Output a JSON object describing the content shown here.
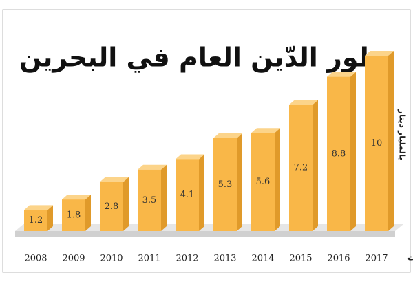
{
  "chart_data": {
    "type": "bar3d",
    "title": "تطور الدّين العام في البحرين",
    "y_axis_label": "بالمليار دينار",
    "annotation": "توقعات",
    "categories": [
      "2008",
      "2009",
      "2010",
      "2011",
      "2012",
      "2013",
      "2014",
      "2015",
      "2016",
      "2017"
    ],
    "values": [
      1.2,
      1.8,
      2.8,
      3.5,
      4.1,
      5.3,
      5.6,
      7.2,
      8.8,
      10
    ],
    "color": "#f9b748",
    "ylim": [
      0,
      10
    ]
  }
}
